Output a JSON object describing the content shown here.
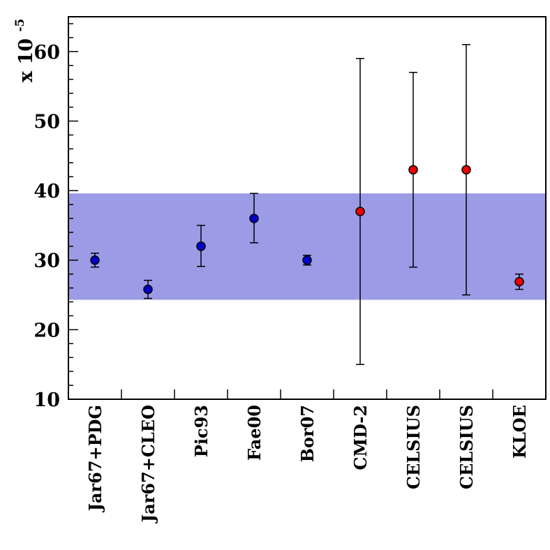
{
  "chart_data": {
    "type": "scatter",
    "ylabel": "x 10",
    "ylabel_exponent": "-5",
    "ylim": [
      10,
      65
    ],
    "yticks": [
      10,
      20,
      30,
      40,
      50,
      60
    ],
    "band": {
      "low": 24.3,
      "high": 39.6,
      "color": "#9b9be6"
    },
    "categories": [
      "Jar67+PDG",
      "Jar67+CLEO",
      "Pic93",
      "Fae00",
      "Bor07",
      "CMD-2",
      "CELSIUS",
      "CELSIUS",
      "KLOE"
    ],
    "points": [
      {
        "category": "Jar67+PDG",
        "value": 30.0,
        "err_low": 29.0,
        "err_high": 31.0,
        "color": "#0000cc"
      },
      {
        "category": "Jar67+CLEO",
        "value": 25.8,
        "err_low": 24.5,
        "err_high": 27.1,
        "color": "#0000cc"
      },
      {
        "category": "Pic93",
        "value": 32.0,
        "err_low": 29.1,
        "err_high": 35.0,
        "color": "#0000cc"
      },
      {
        "category": "Fae00",
        "value": 36.0,
        "err_low": 32.5,
        "err_high": 39.6,
        "color": "#0000cc"
      },
      {
        "category": "Bor07",
        "value": 30.0,
        "err_low": 29.3,
        "err_high": 30.7,
        "color": "#0000cc"
      },
      {
        "category": "CMD-2",
        "value": 37.0,
        "err_low": 15.0,
        "err_high": 59.0,
        "color": "#ee0000"
      },
      {
        "category": "CELSIUS",
        "value": 43.0,
        "err_low": 29.0,
        "err_high": 57.0,
        "color": "#ee0000"
      },
      {
        "category": "CELSIUS",
        "value": 43.0,
        "err_low": 25.0,
        "err_high": 61.0,
        "color": "#ee0000"
      },
      {
        "category": "KLOE",
        "value": 26.9,
        "err_low": 25.8,
        "err_high": 28.0,
        "color": "#ee0000"
      }
    ]
  }
}
